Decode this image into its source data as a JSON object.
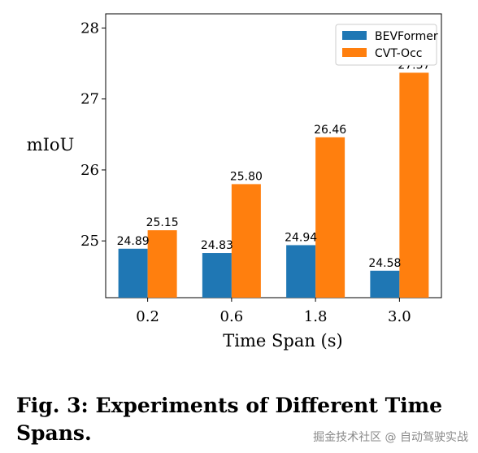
{
  "chart_data": {
    "type": "bar",
    "categories": [
      "0.2",
      "0.6",
      "1.8",
      "3.0"
    ],
    "series": [
      {
        "name": "BEVFormer",
        "values": [
          24.89,
          24.83,
          24.94,
          24.58
        ],
        "color": "#1f77b4"
      },
      {
        "name": "CVT-Occ",
        "values": [
          25.15,
          25.8,
          26.46,
          27.37
        ],
        "color": "#ff7f0e"
      }
    ],
    "data_labels": [
      [
        "24.89",
        "24.83",
        "24.94",
        "24.58"
      ],
      [
        "25.15",
        "25.80",
        "26.46",
        "27.37"
      ]
    ],
    "title": "",
    "xlabel": "Time Span (s)",
    "ylabel": "mIoU",
    "ylim": [
      24.2,
      28.2
    ],
    "yticks": [
      "25",
      "26",
      "27",
      "28"
    ],
    "ytick_values": [
      25,
      26,
      27,
      28
    ],
    "grid": false,
    "legend_position": "top-right"
  },
  "caption": "Fig. 3: Experiments of Different Time Spans.",
  "watermark": "掘金技术社区 @ 自动驾驶实战"
}
